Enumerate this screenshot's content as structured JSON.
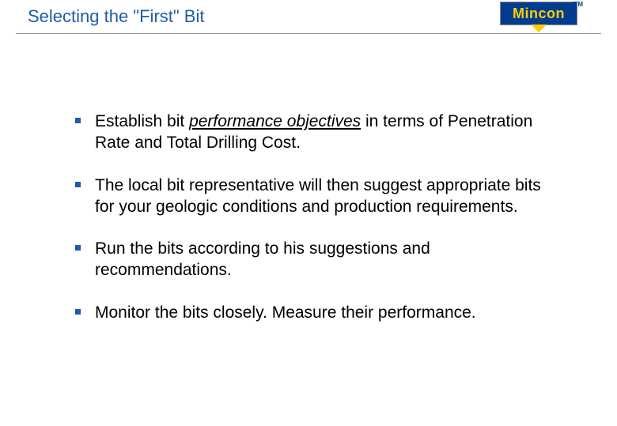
{
  "slide": {
    "title": "Selecting the \"First\" Bit",
    "title_color": "#1f5ca8",
    "title_fontsize": 22,
    "divider_color": "#999999",
    "background_color": "#ffffff"
  },
  "logo": {
    "text": "Mincon",
    "text_color": "#ffcc00",
    "background_color": "#003c8f",
    "trademark": "TM",
    "arrow_color": "#ffcc00"
  },
  "bullets": {
    "marker_color": "#1f5ca8",
    "marker_size": 7,
    "text_color": "#000000",
    "text_fontsize": 21,
    "items": [
      {
        "prefix": "Establish bit ",
        "emphasized": "performance objectives",
        "suffix": " in terms of Penetration Rate and Total Drilling Cost."
      },
      {
        "prefix": "The local bit representative will then suggest appropriate bits for your geologic conditions and production requirements.",
        "emphasized": "",
        "suffix": ""
      },
      {
        "prefix": "Run the bits according to his suggestions and recommendations.",
        "emphasized": "",
        "suffix": ""
      },
      {
        "prefix": "Monitor the bits closely. Measure their performance.",
        "emphasized": "",
        "suffix": ""
      }
    ]
  }
}
